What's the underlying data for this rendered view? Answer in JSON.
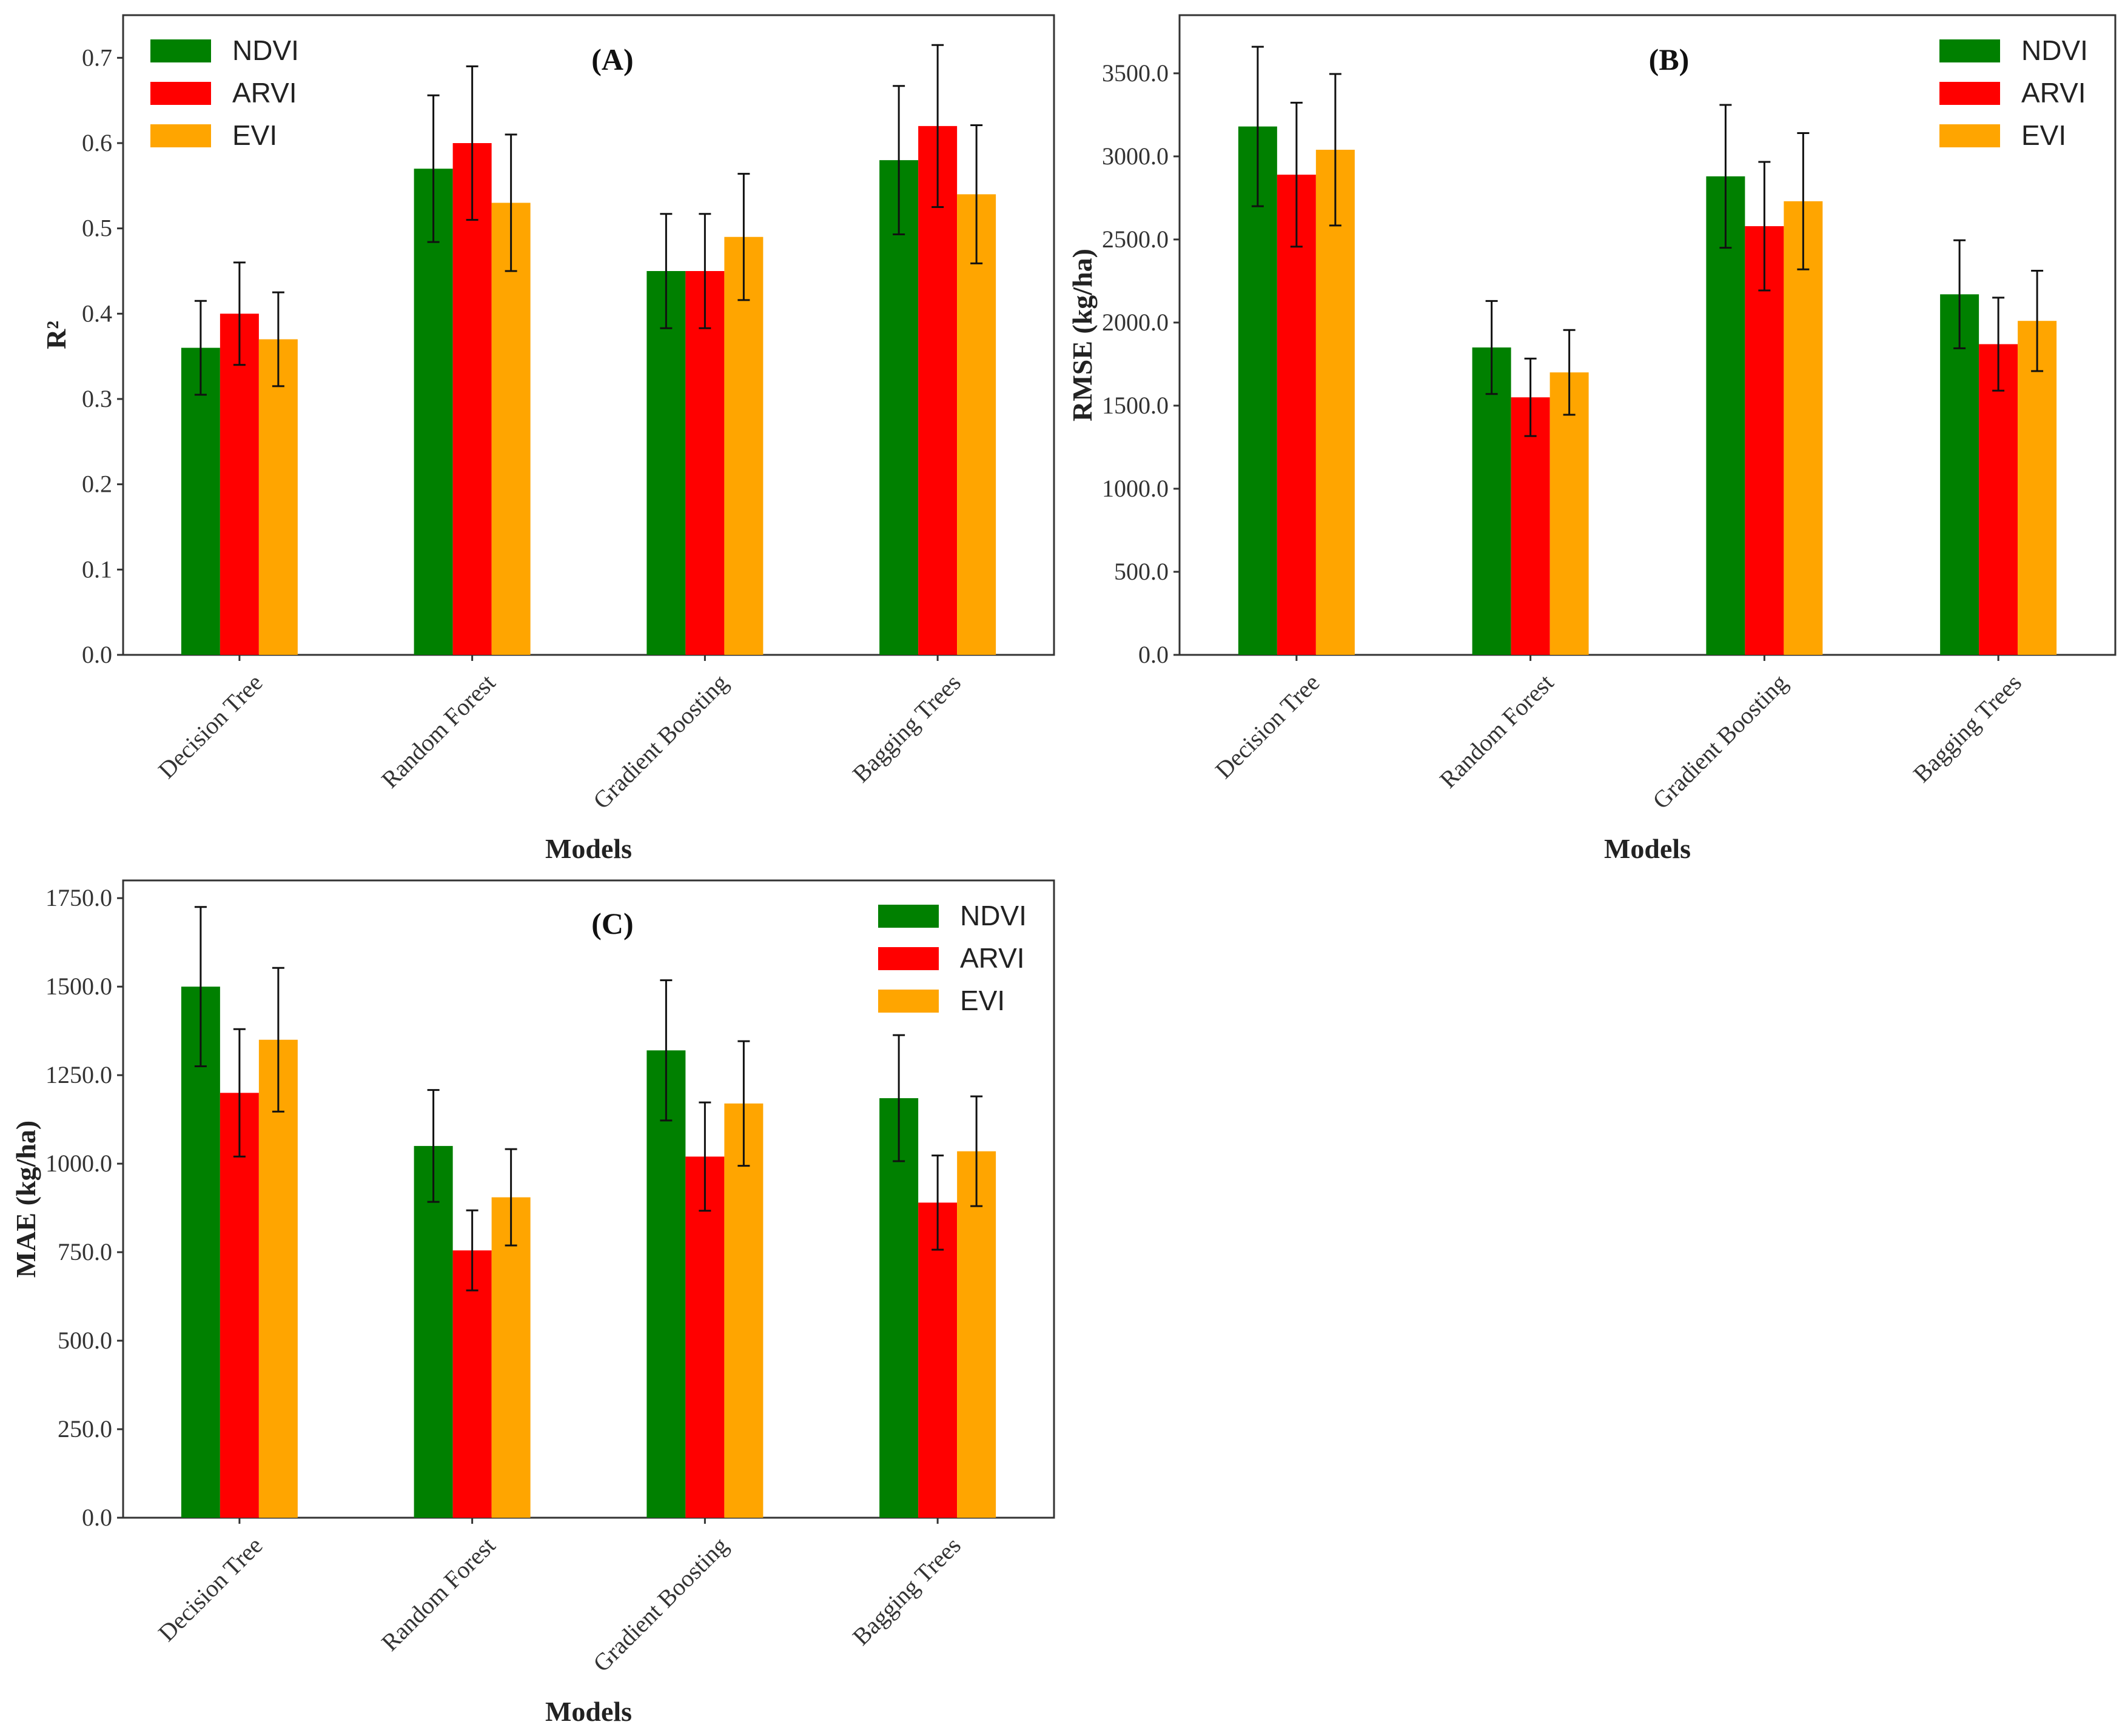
{
  "colors": {
    "NDVI": "#008000",
    "ARVI": "#ff0000",
    "EVI": "#ffa500",
    "error_bar": "#111111"
  },
  "chart_data": [
    {
      "type": "bar",
      "panel_label": "(A)",
      "title": "",
      "xlabel": "Models",
      "ylabel": "R²",
      "categories": [
        "Decision Tree",
        "Random Forest",
        "Gradient Boosting",
        "Bagging Trees"
      ],
      "ylim": [
        0,
        0.75
      ],
      "yticks": [
        0.0,
        0.1,
        0.2,
        0.3,
        0.4,
        0.5,
        0.6,
        0.7
      ],
      "ytick_labels": [
        "0.0",
        "0.1",
        "0.2",
        "0.3",
        "0.4",
        "0.5",
        "0.6",
        "0.7"
      ],
      "legend_position": "top-left",
      "series": [
        {
          "name": "NDVI",
          "values": [
            0.36,
            0.57,
            0.45,
            0.58
          ],
          "errors": [
            0.055,
            0.086,
            0.067,
            0.087
          ]
        },
        {
          "name": "ARVI",
          "values": [
            0.4,
            0.6,
            0.45,
            0.62
          ],
          "errors": [
            0.06,
            0.09,
            0.067,
            0.095
          ]
        },
        {
          "name": "EVI",
          "values": [
            0.37,
            0.53,
            0.49,
            0.54
          ],
          "errors": [
            0.055,
            0.08,
            0.074,
            0.081
          ]
        }
      ]
    },
    {
      "type": "bar",
      "panel_label": "(B)",
      "title": "",
      "xlabel": "Models",
      "ylabel": "RMSE (kg/ha)",
      "categories": [
        "Decision Tree",
        "Random Forest",
        "Gradient Boosting",
        "Bagging Trees"
      ],
      "ylim": [
        0,
        3850
      ],
      "yticks": [
        0,
        500,
        1000,
        1500,
        2000,
        2500,
        3000,
        3500
      ],
      "ytick_labels": [
        "0.0",
        "500.0",
        "1000.0",
        "1500.0",
        "2000.0",
        "2500.0",
        "3000.0",
        "3500.0"
      ],
      "legend_position": "top-right",
      "series": [
        {
          "name": "NDVI",
          "values": [
            3180,
            1850,
            2880,
            2170
          ],
          "errors": [
            480,
            280,
            430,
            325
          ]
        },
        {
          "name": "ARVI",
          "values": [
            2890,
            1550,
            2580,
            1870
          ],
          "errors": [
            433,
            233,
            387,
            280
          ]
        },
        {
          "name": "EVI",
          "values": [
            3040,
            1700,
            2730,
            2010
          ],
          "errors": [
            456,
            255,
            410,
            302
          ]
        }
      ]
    },
    {
      "type": "bar",
      "panel_label": "(C)",
      "title": "",
      "xlabel": "Models",
      "ylabel": "MAE (kg/ha)",
      "categories": [
        "Decision Tree",
        "Random Forest",
        "Gradient Boosting",
        "Bagging Trees"
      ],
      "ylim": [
        0,
        1800
      ],
      "yticks": [
        0,
        250,
        500,
        750,
        1000,
        1250,
        1500,
        1750
      ],
      "ytick_labels": [
        "0.0",
        "250.0",
        "500.0",
        "750.0",
        "1000.0",
        "1250.0",
        "1500.0",
        "1750.0"
      ],
      "legend_position": "top-right",
      "series": [
        {
          "name": "NDVI",
          "values": [
            1500,
            1050,
            1320,
            1185
          ],
          "errors": [
            225,
            158,
            198,
            178
          ]
        },
        {
          "name": "ARVI",
          "values": [
            1200,
            755,
            1020,
            890
          ],
          "errors": [
            180,
            113,
            153,
            133
          ]
        },
        {
          "name": "EVI",
          "values": [
            1350,
            905,
            1170,
            1035
          ],
          "errors": [
            203,
            136,
            176,
            155
          ]
        }
      ]
    }
  ]
}
